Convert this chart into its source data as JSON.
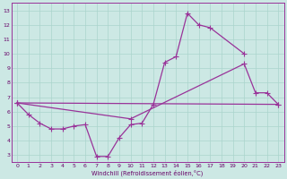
{
  "xlabel": "Windchill (Refroidissement éolien,°C)",
  "background_color": "#cce8e4",
  "grid_color": "#aad4cc",
  "line_color": "#993399",
  "spine_color": "#993399",
  "tick_color": "#660066",
  "xlim": [
    -0.5,
    23.5
  ],
  "ylim": [
    2.5,
    13.5
  ],
  "xticks": [
    0,
    1,
    2,
    3,
    4,
    5,
    6,
    7,
    8,
    9,
    10,
    11,
    12,
    13,
    14,
    15,
    16,
    17,
    18,
    19,
    20,
    21,
    22,
    23
  ],
  "yticks": [
    3,
    4,
    5,
    6,
    7,
    8,
    9,
    10,
    11,
    12,
    13
  ],
  "series": [
    {
      "x": [
        0,
        1,
        2,
        3,
        4,
        5,
        6,
        7,
        8,
        9,
        10,
        11,
        12,
        13,
        14,
        15,
        16,
        17,
        20
      ],
      "y": [
        6.6,
        5.8,
        5.2,
        4.8,
        4.8,
        5.0,
        5.1,
        2.9,
        2.9,
        4.2,
        5.1,
        5.2,
        6.5,
        9.4,
        9.8,
        12.8,
        12.0,
        11.8,
        10.0
      ]
    },
    {
      "x": [
        0,
        23
      ],
      "y": [
        6.6,
        6.5
      ]
    },
    {
      "comment": "upper straight line from (0,6.6) through (10,5.5) to (20,9.3) then (21,7.3),(22,7.3),(23,6.5)",
      "x": [
        0,
        10,
        20,
        21,
        22,
        23
      ],
      "y": [
        6.6,
        5.5,
        9.3,
        7.3,
        7.3,
        6.5
      ]
    }
  ]
}
